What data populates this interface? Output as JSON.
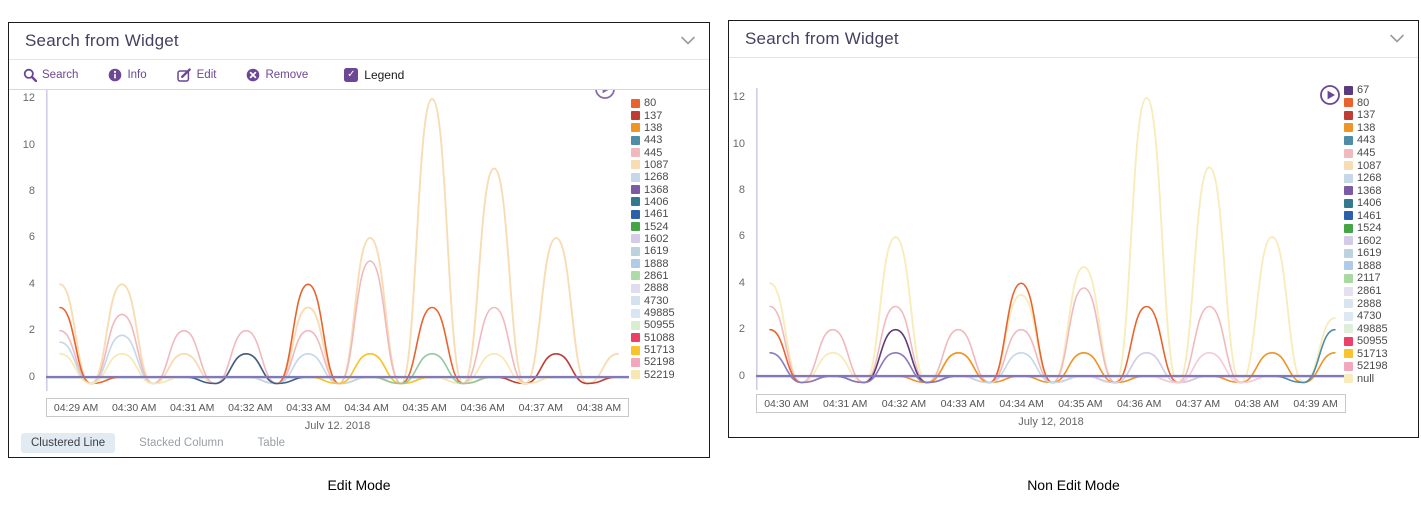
{
  "left_panel": {
    "title": "Search from Widget",
    "caption": "Edit Mode",
    "toolbar": {
      "search": "Search",
      "info": "Info",
      "edit": "Edit",
      "remove": "Remove",
      "legend": "Legend",
      "legend_checked": true
    },
    "tabs": [
      {
        "label": "Clustered Line",
        "selected": true
      },
      {
        "label": "Stacked Column",
        "selected": false
      },
      {
        "label": "Table",
        "selected": false
      }
    ],
    "legend": [
      {
        "label": "80",
        "color": "#E8632E"
      },
      {
        "label": "137",
        "color": "#BE3D35"
      },
      {
        "label": "138",
        "color": "#EE9428"
      },
      {
        "label": "443",
        "color": "#4E8CA8"
      },
      {
        "label": "445",
        "color": "#F0B9BD"
      },
      {
        "label": "1087",
        "color": "#F8DCB4"
      },
      {
        "label": "1268",
        "color": "#C5D8E8"
      },
      {
        "label": "1368",
        "color": "#7B5AA6"
      },
      {
        "label": "1406",
        "color": "#337A8E"
      },
      {
        "label": "1461",
        "color": "#2B61A8"
      },
      {
        "label": "1524",
        "color": "#43A546"
      },
      {
        "label": "1602",
        "color": "#D4CBE6"
      },
      {
        "label": "1619",
        "color": "#BBD3DE"
      },
      {
        "label": "1888",
        "color": "#AFCBE8"
      },
      {
        "label": "2861",
        "color": "#AEDBA8"
      },
      {
        "label": "2888",
        "color": "#DFDCEE"
      },
      {
        "label": "4730",
        "color": "#D3E2EE"
      },
      {
        "label": "49885",
        "color": "#D8E6F4"
      },
      {
        "label": "50955",
        "color": "#D9EDD0"
      },
      {
        "label": "51088",
        "color": "#EC4067"
      },
      {
        "label": "51713",
        "color": "#F8C32C"
      },
      {
        "label": "52198",
        "color": "#F2A7BC"
      },
      {
        "label": "52219",
        "color": "#F6E8B0"
      }
    ]
  },
  "right_panel": {
    "title": "Search from Widget",
    "caption": "Non Edit Mode",
    "legend": [
      {
        "label": "67",
        "color": "#5C3A7E"
      },
      {
        "label": "80",
        "color": "#E8632E"
      },
      {
        "label": "137",
        "color": "#BE3D35"
      },
      {
        "label": "138",
        "color": "#EE9428"
      },
      {
        "label": "443",
        "color": "#4E8CA8"
      },
      {
        "label": "445",
        "color": "#F0B9BD"
      },
      {
        "label": "1087",
        "color": "#F8DCB4"
      },
      {
        "label": "1268",
        "color": "#C5D8E8"
      },
      {
        "label": "1368",
        "color": "#7B5AA6"
      },
      {
        "label": "1406",
        "color": "#337A8E"
      },
      {
        "label": "1461",
        "color": "#2B61A8"
      },
      {
        "label": "1524",
        "color": "#43A546"
      },
      {
        "label": "1602",
        "color": "#D4CBE6"
      },
      {
        "label": "1619",
        "color": "#BBD3DE"
      },
      {
        "label": "1888",
        "color": "#AFCBE8"
      },
      {
        "label": "2117",
        "color": "#A9D8A2"
      },
      {
        "label": "2861",
        "color": "#E4E0F0"
      },
      {
        "label": "2888",
        "color": "#D8E4EE"
      },
      {
        "label": "4730",
        "color": "#DCE8F2"
      },
      {
        "label": "49885",
        "color": "#DEEED8"
      },
      {
        "label": "50955",
        "color": "#EC4067"
      },
      {
        "label": "51713",
        "color": "#F8C32C"
      },
      {
        "label": "52198",
        "color": "#F2A7BC"
      },
      {
        "label": "null",
        "color": "#F8ECBC"
      }
    ]
  },
  "chart_data": [
    {
      "type": "line",
      "title": "",
      "x_ticks": [
        "04:29 AM",
        "04:30 AM",
        "04:31 AM",
        "04:32 AM",
        "04:33 AM",
        "04:34 AM",
        "04:35 AM",
        "04:36 AM",
        "04:37 AM",
        "04:38 AM"
      ],
      "x_axis_label": "July 12, 2018",
      "y_ticks": [
        0,
        2,
        4,
        6,
        8,
        10,
        12
      ],
      "ylim": [
        -0.5,
        12.5
      ],
      "legend_position": "right",
      "grid": false,
      "series": [
        {
          "name": "1087",
          "color": "#F8DCB4",
          "values": [
            4,
            4,
            1,
            1,
            3,
            6,
            12,
            9,
            6,
            1
          ]
        },
        {
          "name": "445",
          "color": "#F0B9BD",
          "values": [
            2,
            2.7,
            2,
            2,
            2,
            5,
            0,
            3,
            0,
            0
          ]
        },
        {
          "name": "80",
          "color": "#E8632E",
          "values": [
            3,
            0,
            0,
            0,
            4,
            0,
            3,
            0,
            0,
            0
          ]
        },
        {
          "name": "137",
          "color": "#BE3D35",
          "values": [
            0,
            0,
            0,
            0,
            0,
            0,
            0,
            0,
            1,
            0
          ]
        },
        {
          "name": "1268",
          "color": "#C5D8E8",
          "values": [
            1.5,
            1.8,
            0,
            0,
            1,
            0,
            0,
            0,
            0,
            0
          ]
        },
        {
          "name": "52219",
          "color": "#F6E8B0",
          "values": [
            1,
            1,
            0,
            0,
            0,
            1,
            0,
            1,
            0,
            0
          ]
        },
        {
          "name": "51713",
          "color": "#F8C32C",
          "values": [
            0,
            0,
            0,
            0,
            0,
            1,
            0,
            0,
            0,
            0
          ]
        },
        {
          "name": "2861",
          "color": "#94C9A0",
          "values": [
            0,
            0,
            0,
            0,
            0,
            0,
            1,
            0,
            0,
            0
          ]
        },
        {
          "name": "1461",
          "color": "#3E5F8A",
          "values": [
            0,
            0,
            0,
            1,
            0,
            0,
            0,
            0,
            0,
            0
          ]
        }
      ]
    },
    {
      "type": "line",
      "title": "",
      "x_ticks": [
        "04:30 AM",
        "04:31 AM",
        "04:32 AM",
        "04:33 AM",
        "04:34 AM",
        "04:35 AM",
        "04:36 AM",
        "04:37 AM",
        "04:38 AM",
        "04:39 AM"
      ],
      "x_axis_label": "July 12, 2018",
      "y_ticks": [
        0,
        2,
        4,
        6,
        8,
        10,
        12
      ],
      "ylim": [
        -0.5,
        12.5
      ],
      "legend_position": "right",
      "grid": false,
      "series": [
        {
          "name": "null",
          "color": "#F8ECBC",
          "values": [
            4,
            1,
            6,
            1,
            3.5,
            4.7,
            12,
            9,
            6,
            2.5
          ]
        },
        {
          "name": "445",
          "color": "#F0B9BD",
          "values": [
            3,
            2,
            3,
            2,
            2,
            3.8,
            0,
            3,
            0,
            0
          ]
        },
        {
          "name": "80",
          "color": "#E8632E",
          "values": [
            2,
            0,
            0,
            0,
            4,
            0,
            3,
            0,
            0,
            0
          ]
        },
        {
          "name": "138",
          "color": "#EE9428",
          "values": [
            0,
            0,
            0,
            1,
            0,
            1,
            0,
            0,
            1,
            1
          ]
        },
        {
          "name": "67",
          "color": "#5C3A7E",
          "values": [
            0,
            0,
            2,
            0,
            0,
            0,
            0,
            0,
            0,
            0
          ]
        },
        {
          "name": "1368",
          "color": "#8A7BBE",
          "values": [
            1,
            0,
            1,
            0,
            0,
            0,
            0,
            0,
            0,
            0
          ]
        },
        {
          "name": "1268",
          "color": "#C5D8E8",
          "values": [
            0,
            0,
            0,
            0,
            1,
            0,
            0,
            0,
            0,
            0
          ]
        },
        {
          "name": "443",
          "color": "#4E8CA8",
          "values": [
            0,
            0,
            0,
            0,
            0,
            0,
            0,
            0,
            0,
            2
          ]
        },
        {
          "name": "1602",
          "color": "#D4CBE6",
          "values": [
            0,
            0,
            0,
            0,
            0,
            0,
            1,
            0,
            0,
            0
          ]
        },
        {
          "name": "52198",
          "color": "#F4CBD8",
          "values": [
            0,
            0,
            0,
            0,
            0,
            0,
            0,
            1,
            0,
            0
          ]
        }
      ]
    }
  ],
  "colors": {
    "accent_purple": "#6C4796",
    "title_text": "#454060",
    "axis_line": "#CFC9E3",
    "zero_line": "#8578B8",
    "zero_underline": "#BFD9E2",
    "panel_border": "#1c1c1c",
    "tab_selected_bg": "#E3EBF2"
  }
}
